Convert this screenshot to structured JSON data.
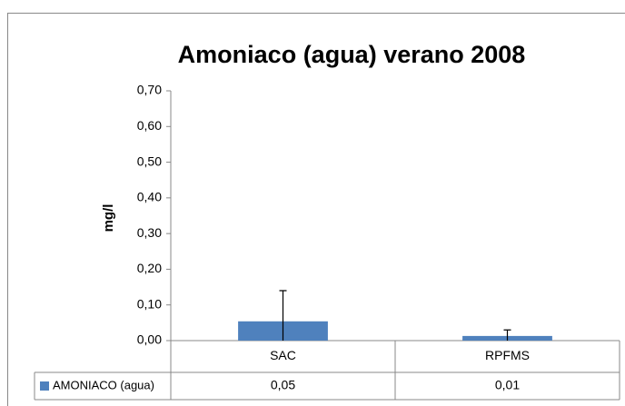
{
  "chart_data": {
    "type": "bar",
    "title": "Amoniaco (agua) verano 2008",
    "y_label": "mg/l",
    "categories": [
      "SAC",
      "RPFMS"
    ],
    "series": [
      {
        "name": "AMONIACO (agua)",
        "color": "#4f81bd",
        "values": [
          0.054,
          0.013
        ],
        "value_labels": [
          "0,05",
          "0,01"
        ],
        "errors": [
          0.086,
          0.017
        ]
      }
    ],
    "ylim": [
      0,
      0.7
    ],
    "yticks": [
      {
        "value": 0,
        "label": "0,00"
      },
      {
        "value": 0.1,
        "label": "0,10"
      },
      {
        "value": 0.2,
        "label": "0,20"
      },
      {
        "value": 0.3,
        "label": "0,30"
      },
      {
        "value": 0.4,
        "label": "0,40"
      },
      {
        "value": 0.5,
        "label": "0,50"
      },
      {
        "value": 0.6,
        "label": "0,60"
      },
      {
        "value": 0.7,
        "label": "0,70"
      }
    ],
    "grid": false
  }
}
